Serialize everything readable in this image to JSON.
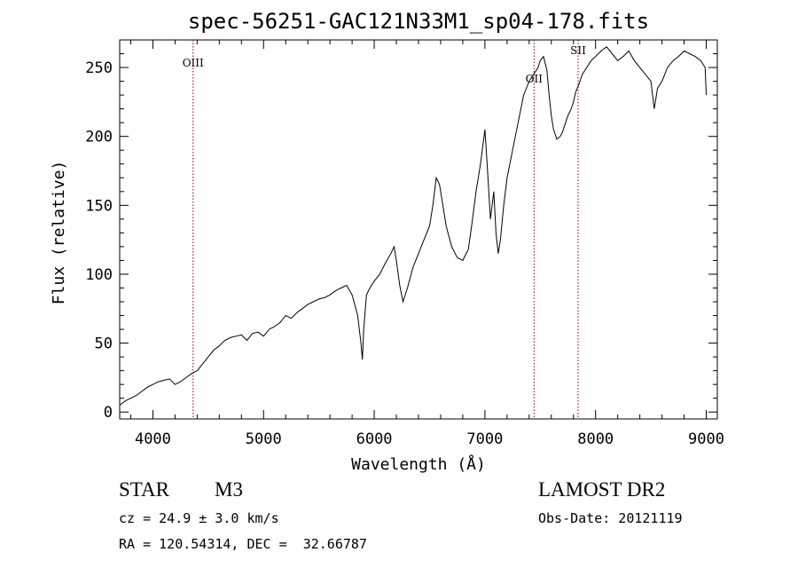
{
  "chart_data": {
    "type": "line",
    "title": "spec-56251-GAC121N33M1_sp04-178.fits",
    "xlabel": "Wavelength (Å)",
    "ylabel": "Flux (relative)",
    "xlim": [
      3700,
      9100
    ],
    "ylim": [
      -5,
      270
    ],
    "xticks": [
      4000,
      5000,
      6000,
      7000,
      8000,
      9000
    ],
    "yticks": [
      0,
      50,
      100,
      150,
      200,
      250
    ],
    "grid": false,
    "legend": "none",
    "line_color": "#000000",
    "marker_color": "#8b0000",
    "markers": [
      {
        "label": "OIII",
        "x": 4363
      },
      {
        "label": "OII",
        "x": 7444
      },
      {
        "label": "SII",
        "x": 7842
      }
    ],
    "series": [
      {
        "x": [
          3700,
          3750,
          3800,
          3850,
          3900,
          3950,
          4000,
          4050,
          4100,
          4150,
          4200,
          4250,
          4300,
          4350,
          4400,
          4450,
          4500,
          4550,
          4600,
          4650,
          4700,
          4750,
          4800,
          4850,
          4900,
          4950,
          5000,
          5050,
          5100,
          5150,
          5200,
          5250,
          5300,
          5350,
          5400,
          5450,
          5500,
          5550,
          5600,
          5650,
          5700,
          5750,
          5800,
          5850,
          5880,
          5893,
          5905,
          5930,
          5960,
          6000,
          6050,
          6100,
          6150,
          6180,
          6200,
          6230,
          6260,
          6300,
          6350,
          6400,
          6450,
          6500,
          6530,
          6560,
          6590,
          6620,
          6650,
          6700,
          6750,
          6800,
          6850,
          6880,
          6920,
          6960,
          7000,
          7020,
          7050,
          7080,
          7100,
          7120,
          7140,
          7170,
          7200,
          7250,
          7300,
          7350,
          7400,
          7440,
          7480,
          7500,
          7530,
          7560,
          7580,
          7600,
          7620,
          7650,
          7680,
          7700,
          7720,
          7750,
          7780,
          7800,
          7820,
          7850,
          7880,
          7920,
          7960,
          8000,
          8050,
          8100,
          8150,
          8200,
          8250,
          8300,
          8350,
          8400,
          8450,
          8500,
          8530,
          8560,
          8600,
          8650,
          8700,
          8750,
          8800,
          8850,
          8900,
          8950,
          8990,
          9000
        ],
        "values": [
          5,
          8,
          10,
          12,
          15,
          18,
          20,
          22,
          23,
          24,
          20,
          22,
          25,
          28,
          30,
          35,
          40,
          45,
          48,
          52,
          54,
          55,
          56,
          52,
          57,
          58,
          55,
          60,
          62,
          65,
          70,
          68,
          72,
          75,
          78,
          80,
          82,
          83,
          85,
          88,
          90,
          92,
          85,
          70,
          50,
          38,
          60,
          85,
          90,
          95,
          100,
          108,
          115,
          120,
          110,
          92,
          80,
          90,
          105,
          115,
          125,
          135,
          150,
          170,
          165,
          150,
          135,
          120,
          112,
          110,
          118,
          135,
          160,
          180,
          205,
          180,
          140,
          160,
          130,
          115,
          125,
          150,
          170,
          190,
          210,
          230,
          240,
          245,
          250,
          255,
          258,
          248,
          230,
          215,
          205,
          198,
          200,
          203,
          208,
          215,
          220,
          225,
          232,
          238,
          245,
          250,
          255,
          258,
          262,
          265,
          260,
          255,
          258,
          262,
          255,
          250,
          245,
          240,
          220,
          235,
          240,
          250,
          255,
          258,
          262,
          260,
          258,
          255,
          250,
          230
        ]
      }
    ]
  },
  "info": {
    "object_class": "STAR",
    "subclass": "M3",
    "redshift_line": "cz = 24.9 ± 3.0 km/s",
    "coords_line": "RA = 120.54314, DEC =  32.66787",
    "survey": "LAMOST DR2",
    "obs_date": "Obs-Date: 20121119"
  }
}
